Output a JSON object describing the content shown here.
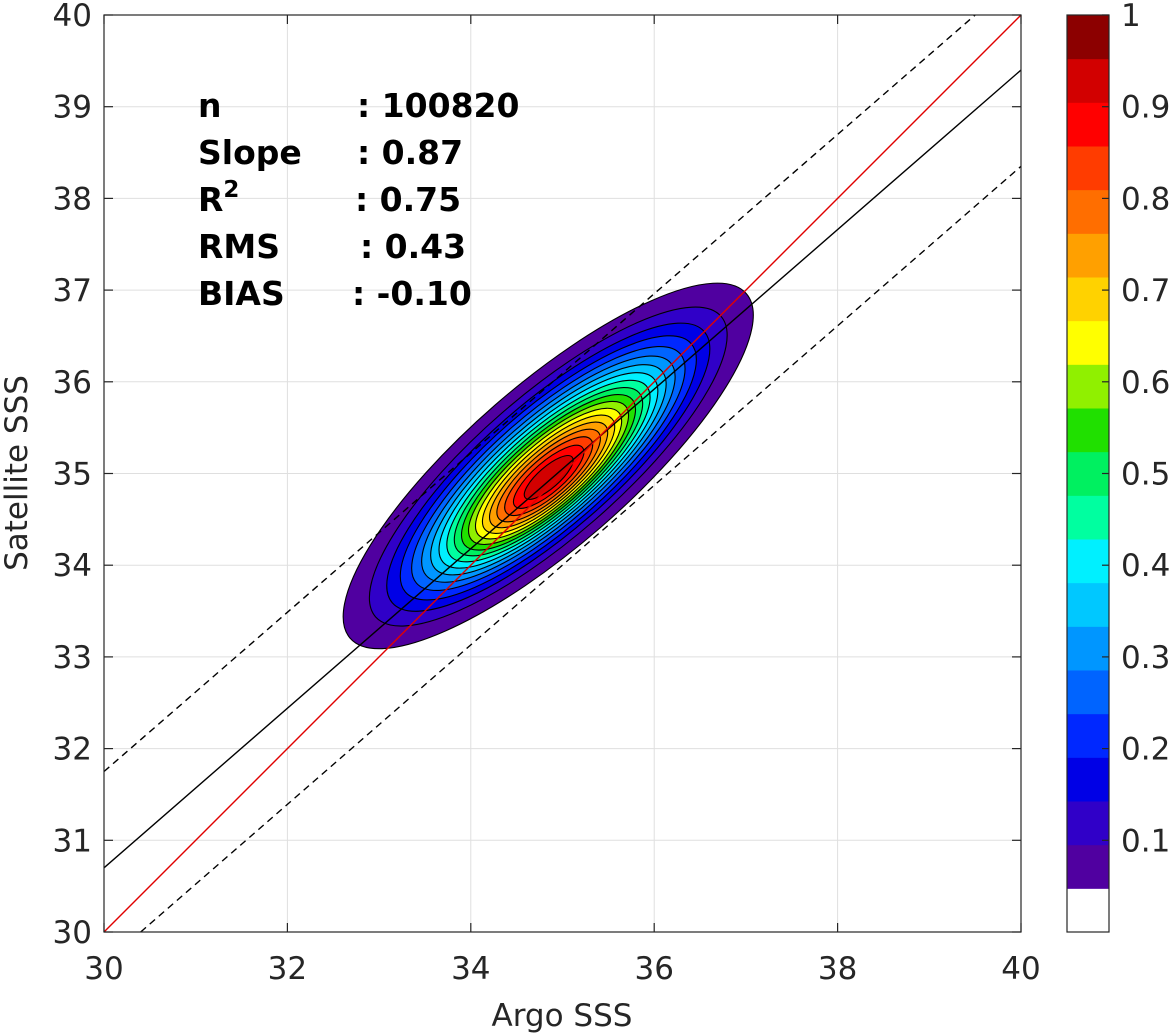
{
  "chart_data": {
    "type": "contour-density",
    "xlabel": "Argo SSS",
    "ylabel": "Satellite SSS",
    "xlim": [
      30,
      40
    ],
    "ylim": [
      30,
      40
    ],
    "xticks": [
      30,
      32,
      34,
      36,
      38,
      40
    ],
    "yticks": [
      30,
      31,
      32,
      33,
      34,
      35,
      36,
      37,
      38,
      39,
      40
    ],
    "grid": true,
    "stats": [
      {
        "label": "n",
        "value": ": 100820"
      },
      {
        "label": "Slope",
        "value": ": 0.87"
      },
      {
        "label": "R",
        "sup": "2",
        "value": ": 0.75"
      },
      {
        "label": "RMS",
        "value": ": 0.43"
      },
      {
        "label": "BIAS",
        "value": ": -0.10"
      }
    ],
    "lines": {
      "identity": {
        "x": [
          30,
          40
        ],
        "y": [
          30,
          40
        ],
        "color": "#e00000"
      },
      "fit": {
        "x": [
          30,
          40
        ],
        "y": [
          30.7,
          39.4
        ],
        "color": "#000000"
      },
      "fit_upper": {
        "x": [
          30,
          39.5
        ],
        "y": [
          31.75,
          40
        ],
        "color": "#000000",
        "dash": true
      },
      "fit_lower": {
        "x": [
          30.4,
          40
        ],
        "y": [
          30,
          38.35
        ],
        "color": "#000000",
        "dash": true
      }
    },
    "density_peak": {
      "x": 34.85,
      "y": 34.95
    },
    "contour_levels": [
      0.05,
      0.1,
      0.15,
      0.2,
      0.25,
      0.3,
      0.35,
      0.4,
      0.45,
      0.5,
      0.55,
      0.6,
      0.65,
      0.7,
      0.75,
      0.8,
      0.85,
      0.9,
      0.95
    ],
    "colorbar": {
      "ticks": [
        "0.1",
        "0.2",
        "0.3",
        "0.4",
        "0.5",
        "0.6",
        "0.7",
        "0.8",
        "0.9",
        "1"
      ],
      "tick_values": [
        0.1,
        0.2,
        0.3,
        0.4,
        0.5,
        0.6,
        0.7,
        0.8,
        0.9,
        1.0
      ],
      "range": [
        0,
        1
      ],
      "colors": [
        "#ffffff",
        "#5000a0",
        "#3000c8",
        "#0000e6",
        "#0028ff",
        "#0064ff",
        "#0096ff",
        "#00c8ff",
        "#00f0ff",
        "#00ffa0",
        "#00f060",
        "#20e000",
        "#90f000",
        "#ffff00",
        "#ffd200",
        "#ffa000",
        "#ff6e00",
        "#ff3c00",
        "#ff0000",
        "#d20000",
        "#8c0000"
      ]
    }
  }
}
